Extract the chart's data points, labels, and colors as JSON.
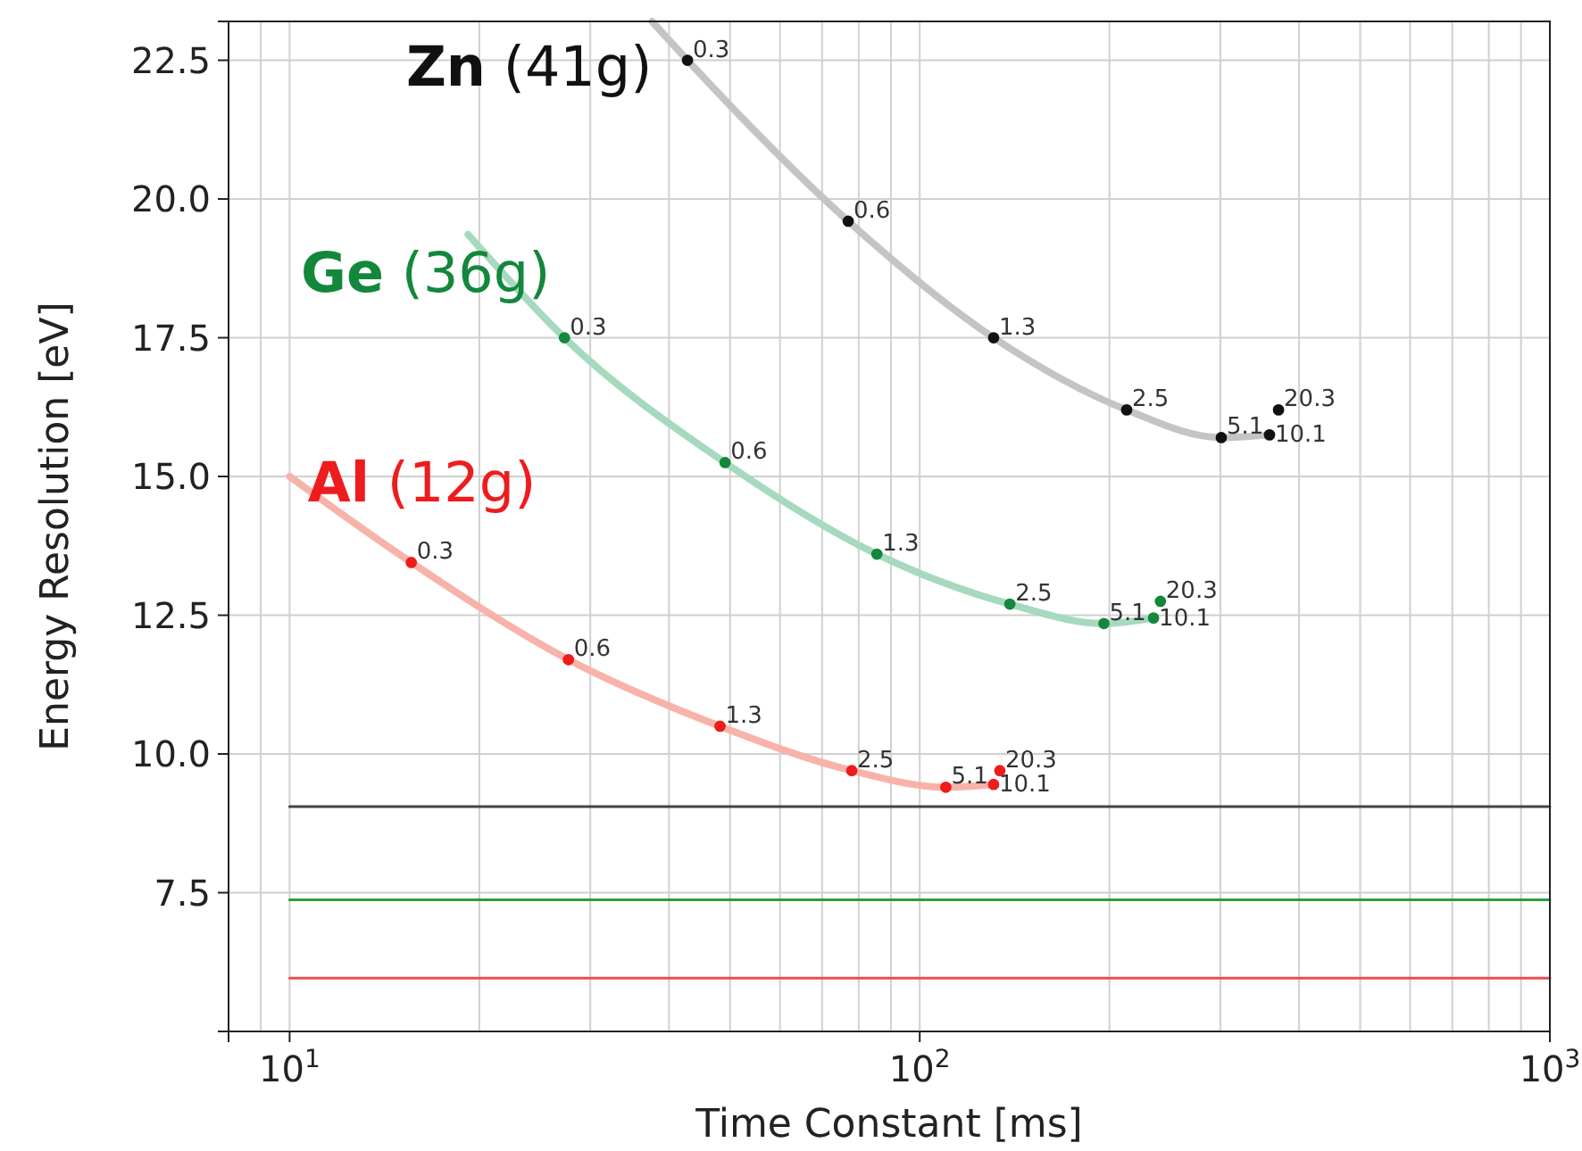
{
  "chart_data": {
    "type": "scatter",
    "xlabel": "Time Constant [ms]",
    "ylabel": "Energy Resolution [eV]",
    "log": "x",
    "grid": true,
    "legend": false,
    "xlim": [
      8,
      1000
    ],
    "ylim": [
      5,
      23.2
    ],
    "xticks": [
      {
        "value": 10,
        "label": "10$^{1}$"
      },
      {
        "value": 100,
        "label": "10$^{2}$"
      },
      {
        "value": 1000,
        "label": "10$^{3}$"
      }
    ],
    "yticks": [
      {
        "value": 7.5,
        "label": "7.5"
      },
      {
        "value": 10,
        "label": "10.0"
      },
      {
        "value": 12.5,
        "label": "12.5"
      },
      {
        "value": 15,
        "label": "15.0"
      },
      {
        "value": 17.5,
        "label": "17.5"
      },
      {
        "value": 20,
        "label": "20.0"
      },
      {
        "value": 22.5,
        "label": "22.5"
      }
    ],
    "series": [
      {
        "type": "line",
        "color": "#c4c4c4",
        "x": [
          37.6,
          42.8,
          77,
          131,
          213,
          301,
          359
        ],
        "values": [
          23.2,
          22.5,
          19.6,
          17.5,
          16.2,
          15.7,
          15.75
        ]
      },
      {
        "type": "line",
        "color": "#a6d9bd",
        "x": [
          19.2,
          27.3,
          49.1,
          85.5,
          139,
          196,
          235
        ],
        "values": [
          19.36,
          17.5,
          15.25,
          13.6,
          12.7,
          12.35,
          12.45
        ]
      },
      {
        "type": "line",
        "color": "#f7b3aa",
        "x": [
          10,
          15.6,
          27.7,
          48.2,
          78,
          110,
          131
        ],
        "values": [
          15.0,
          13.45,
          11.7,
          10.5,
          9.7,
          9.4,
          9.45
        ]
      },
      {
        "name": "Zn (41g)",
        "marker": "circle",
        "color": "#111111",
        "x": [
          42.8,
          77,
          131,
          213,
          301,
          359,
          371
        ],
        "values": [
          22.5,
          19.6,
          17.5,
          16.2,
          15.7,
          15.75,
          16.2
        ]
      },
      {
        "name": "Ge (36g)",
        "marker": "circle",
        "color": "#13873c",
        "x": [
          27.3,
          49.1,
          85.5,
          139,
          196,
          235,
          241
        ],
        "values": [
          17.5,
          15.25,
          13.6,
          12.7,
          12.35,
          12.45,
          12.75
        ]
      },
      {
        "name": "Al (12g)",
        "marker": "circle",
        "color": "#ee1c1c",
        "x": [
          15.6,
          27.7,
          48.2,
          78,
          110,
          131,
          134
        ],
        "values": [
          13.45,
          11.7,
          10.5,
          9.7,
          9.4,
          9.45,
          9.7
        ]
      },
      {
        "type": "line",
        "color": "#444444",
        "x": [
          10,
          1000
        ],
        "values": [
          9.05,
          9.05
        ]
      },
      {
        "type": "line",
        "color": "#2e9e3e",
        "x": [
          10,
          1000
        ],
        "values": [
          7.37,
          7.37
        ]
      },
      {
        "type": "line",
        "color": "#e85050",
        "x": [
          10,
          1000
        ],
        "values": [
          5.96,
          5.96
        ]
      }
    ],
    "annotations": [
      {
        "text": "0.3",
        "x": 42.8,
        "y": 22.5
      },
      {
        "text": "0.6",
        "x": 77,
        "y": 19.6
      },
      {
        "text": "1.3",
        "x": 131,
        "y": 17.5
      },
      {
        "text": "2.5",
        "x": 213,
        "y": 16.2
      },
      {
        "text": "5.1",
        "x": 301,
        "y": 15.7
      },
      {
        "text": "10.1",
        "x": 359,
        "y": 15.75
      },
      {
        "text": "20.3",
        "x": 371,
        "y": 16.2
      },
      {
        "text": "0.3",
        "x": 27.3,
        "y": 17.5
      },
      {
        "text": "0.6",
        "x": 49.1,
        "y": 15.25
      },
      {
        "text": "1.3",
        "x": 85.5,
        "y": 13.6
      },
      {
        "text": "2.5",
        "x": 139,
        "y": 12.7
      },
      {
        "text": "5.1",
        "x": 196,
        "y": 12.35
      },
      {
        "text": "10.1",
        "x": 235,
        "y": 12.45
      },
      {
        "text": "20.3",
        "x": 241,
        "y": 12.75
      },
      {
        "text": "0.3",
        "x": 15.6,
        "y": 13.45
      },
      {
        "text": "0.6",
        "x": 27.7,
        "y": 11.7
      },
      {
        "text": "1.3",
        "x": 48.2,
        "y": 10.5
      },
      {
        "text": "2.5",
        "x": 78,
        "y": 9.7
      },
      {
        "text": "5.1",
        "x": 110,
        "y": 9.4
      },
      {
        "text": "10.1",
        "x": 131,
        "y": 9.45
      },
      {
        "text": "20.3",
        "x": 134,
        "y": 9.7
      }
    ]
  }
}
